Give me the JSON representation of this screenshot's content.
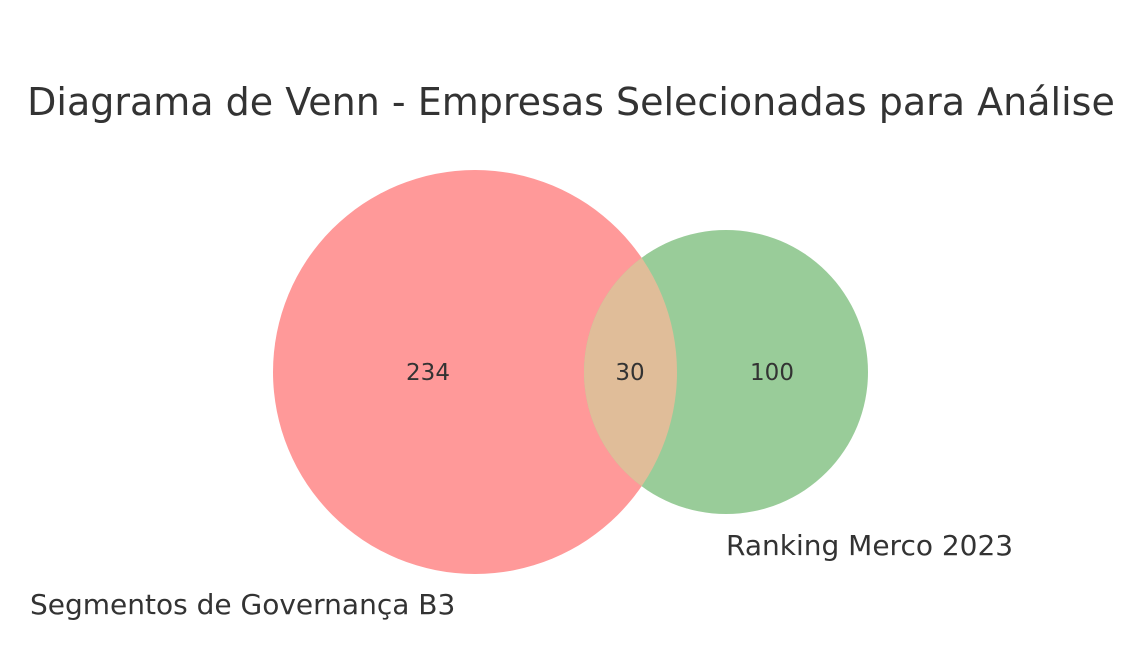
{
  "title": "Diagrama de Venn - Empresas Selecionadas para Análise",
  "sets": [
    {
      "label": "Segmentos de Governança B3",
      "color": "#ff9999"
    },
    {
      "label": "Ranking Merco 2023",
      "color": "#99cc99"
    }
  ],
  "counts": {
    "only_a": "234",
    "intersection": "30",
    "only_b": "100"
  },
  "intersection_color": "#e0bd99"
}
